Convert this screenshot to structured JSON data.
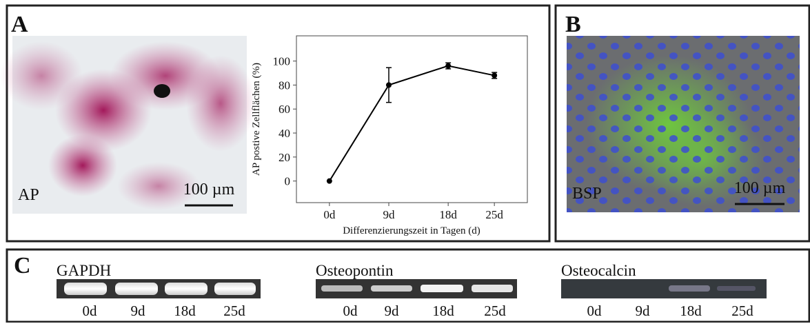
{
  "chart_data": {
    "type": "line",
    "y_label": "AP postive Zellflächen (%)",
    "x_label": "Differenzierungszeit in Tagen (d)",
    "x": [
      0,
      9,
      18,
      25
    ],
    "series": [
      {
        "color": "#000000",
        "values": [
          0,
          80,
          96,
          88
        ],
        "errors": [
          null,
          14.5,
          2.5,
          2.5
        ]
      }
    ],
    "xlim": [
      -5,
      30
    ],
    "xticks": [
      {
        "value": 0,
        "label": "0d"
      },
      {
        "value": 9,
        "label": "9d"
      },
      {
        "value": 18,
        "label": "18d"
      },
      {
        "value": 25,
        "label": "25d"
      }
    ],
    "ylim": [
      -18,
      121
    ],
    "yticks": [
      0,
      20,
      40,
      60,
      80,
      100
    ],
    "grid": false
  },
  "panel_a": {
    "label": "A",
    "image_label": "AP",
    "scale_bar": "100 µm"
  },
  "panel_b": {
    "label": "B",
    "image_label": "BSP",
    "scale_bar": "100 µm"
  },
  "panel_c": {
    "label": "C",
    "gels": [
      {
        "title": "GAPDH",
        "lanes": [
          "0d",
          "9d",
          "18d",
          "25d"
        ]
      },
      {
        "title": "Osteopontin",
        "lanes": [
          "0d",
          "9d",
          "18d",
          "25d"
        ]
      },
      {
        "title": "Osteocalcin",
        "lanes": [
          "0d",
          "9d",
          "18d",
          "25d"
        ]
      }
    ]
  }
}
